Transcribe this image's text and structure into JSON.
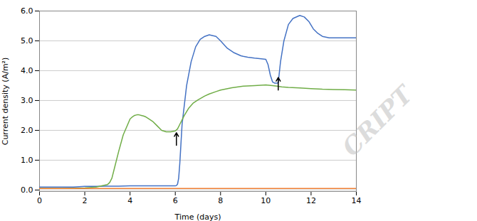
{
  "chart_data": {
    "type": "line",
    "xlabel": "Time (days)",
    "ylabel": "Current density (A/m²)",
    "xlim": [
      0,
      14
    ],
    "ylim": [
      -0.05,
      6
    ],
    "xticks": [
      0,
      2,
      4,
      6,
      8,
      10,
      12,
      14
    ],
    "yticks": [
      0,
      1,
      2,
      3,
      4,
      5,
      6
    ],
    "grid": "y",
    "annotations": [
      "CRIPT"
    ],
    "arrows": [
      {
        "x": 6.05,
        "y1": 1.5,
        "y2": 1.92
      },
      {
        "x": 10.55,
        "y1": 3.35,
        "y2": 3.77
      }
    ],
    "series": [
      {
        "color": "#4472C4",
        "x": [
          0,
          0.2,
          0.5,
          1.0,
          1.5,
          2.0,
          2.5,
          3.0,
          3.5,
          4.0,
          4.5,
          5.0,
          5.5,
          5.8,
          5.9,
          6.0,
          6.05,
          6.1,
          6.15,
          6.2,
          6.3,
          6.5,
          6.7,
          6.9,
          7.1,
          7.3,
          7.5,
          7.8,
          8.0,
          8.3,
          8.6,
          8.9,
          9.0,
          9.2,
          9.5,
          9.8,
          10.0,
          10.1,
          10.2,
          10.3,
          10.4,
          10.5,
          10.55,
          10.65,
          10.8,
          11.0,
          11.2,
          11.5,
          11.7,
          11.9,
          12.1,
          12.3,
          12.5,
          12.8,
          13.0,
          13.5,
          14.0
        ],
        "values": [
          0.1,
          0.1,
          0.1,
          0.1,
          0.1,
          0.12,
          0.12,
          0.13,
          0.13,
          0.14,
          0.14,
          0.14,
          0.14,
          0.14,
          0.14,
          0.14,
          0.15,
          0.2,
          0.4,
          0.9,
          2.2,
          3.5,
          4.3,
          4.8,
          5.05,
          5.15,
          5.2,
          5.15,
          5.0,
          4.75,
          4.6,
          4.5,
          4.48,
          4.45,
          4.42,
          4.4,
          4.38,
          4.2,
          3.85,
          3.62,
          3.58,
          3.58,
          3.6,
          4.3,
          5.0,
          5.55,
          5.75,
          5.85,
          5.8,
          5.65,
          5.4,
          5.25,
          5.15,
          5.1,
          5.1,
          5.1,
          5.1
        ]
      },
      {
        "color": "#70AD47",
        "x": [
          0,
          0.5,
          1.0,
          1.5,
          2.0,
          2.5,
          3.0,
          3.1,
          3.2,
          3.3,
          3.5,
          3.7,
          3.9,
          4.0,
          4.1,
          4.2,
          4.3,
          4.4,
          4.5,
          4.6,
          4.7,
          4.8,
          5.0,
          5.2,
          5.4,
          5.6,
          5.8,
          6.0,
          6.1,
          6.2,
          6.4,
          6.6,
          6.8,
          7.0,
          7.3,
          7.5,
          7.8,
          8.0,
          8.5,
          9.0,
          9.5,
          10.0,
          10.3,
          10.5,
          10.7,
          11.0,
          11.5,
          12.0,
          12.5,
          13.0,
          13.5,
          14.0
        ],
        "values": [
          0.05,
          0.05,
          0.05,
          0.06,
          0.07,
          0.1,
          0.18,
          0.25,
          0.4,
          0.7,
          1.3,
          1.85,
          2.2,
          2.38,
          2.45,
          2.5,
          2.52,
          2.52,
          2.5,
          2.48,
          2.45,
          2.4,
          2.3,
          2.15,
          2.0,
          1.95,
          1.95,
          1.98,
          2.05,
          2.2,
          2.5,
          2.75,
          2.92,
          3.02,
          3.15,
          3.22,
          3.3,
          3.35,
          3.43,
          3.48,
          3.5,
          3.52,
          3.5,
          3.48,
          3.46,
          3.44,
          3.42,
          3.4,
          3.38,
          3.37,
          3.36,
          3.35
        ]
      },
      {
        "color": "#ED7D31",
        "x": [
          0,
          1,
          2,
          3,
          4,
          5,
          6,
          7,
          8,
          9,
          10,
          11,
          12,
          13,
          14
        ],
        "values": [
          0.05,
          0.05,
          0.05,
          0.05,
          0.05,
          0.05,
          0.05,
          0.05,
          0.05,
          0.05,
          0.05,
          0.05,
          0.05,
          0.05,
          0.05
        ]
      }
    ]
  }
}
